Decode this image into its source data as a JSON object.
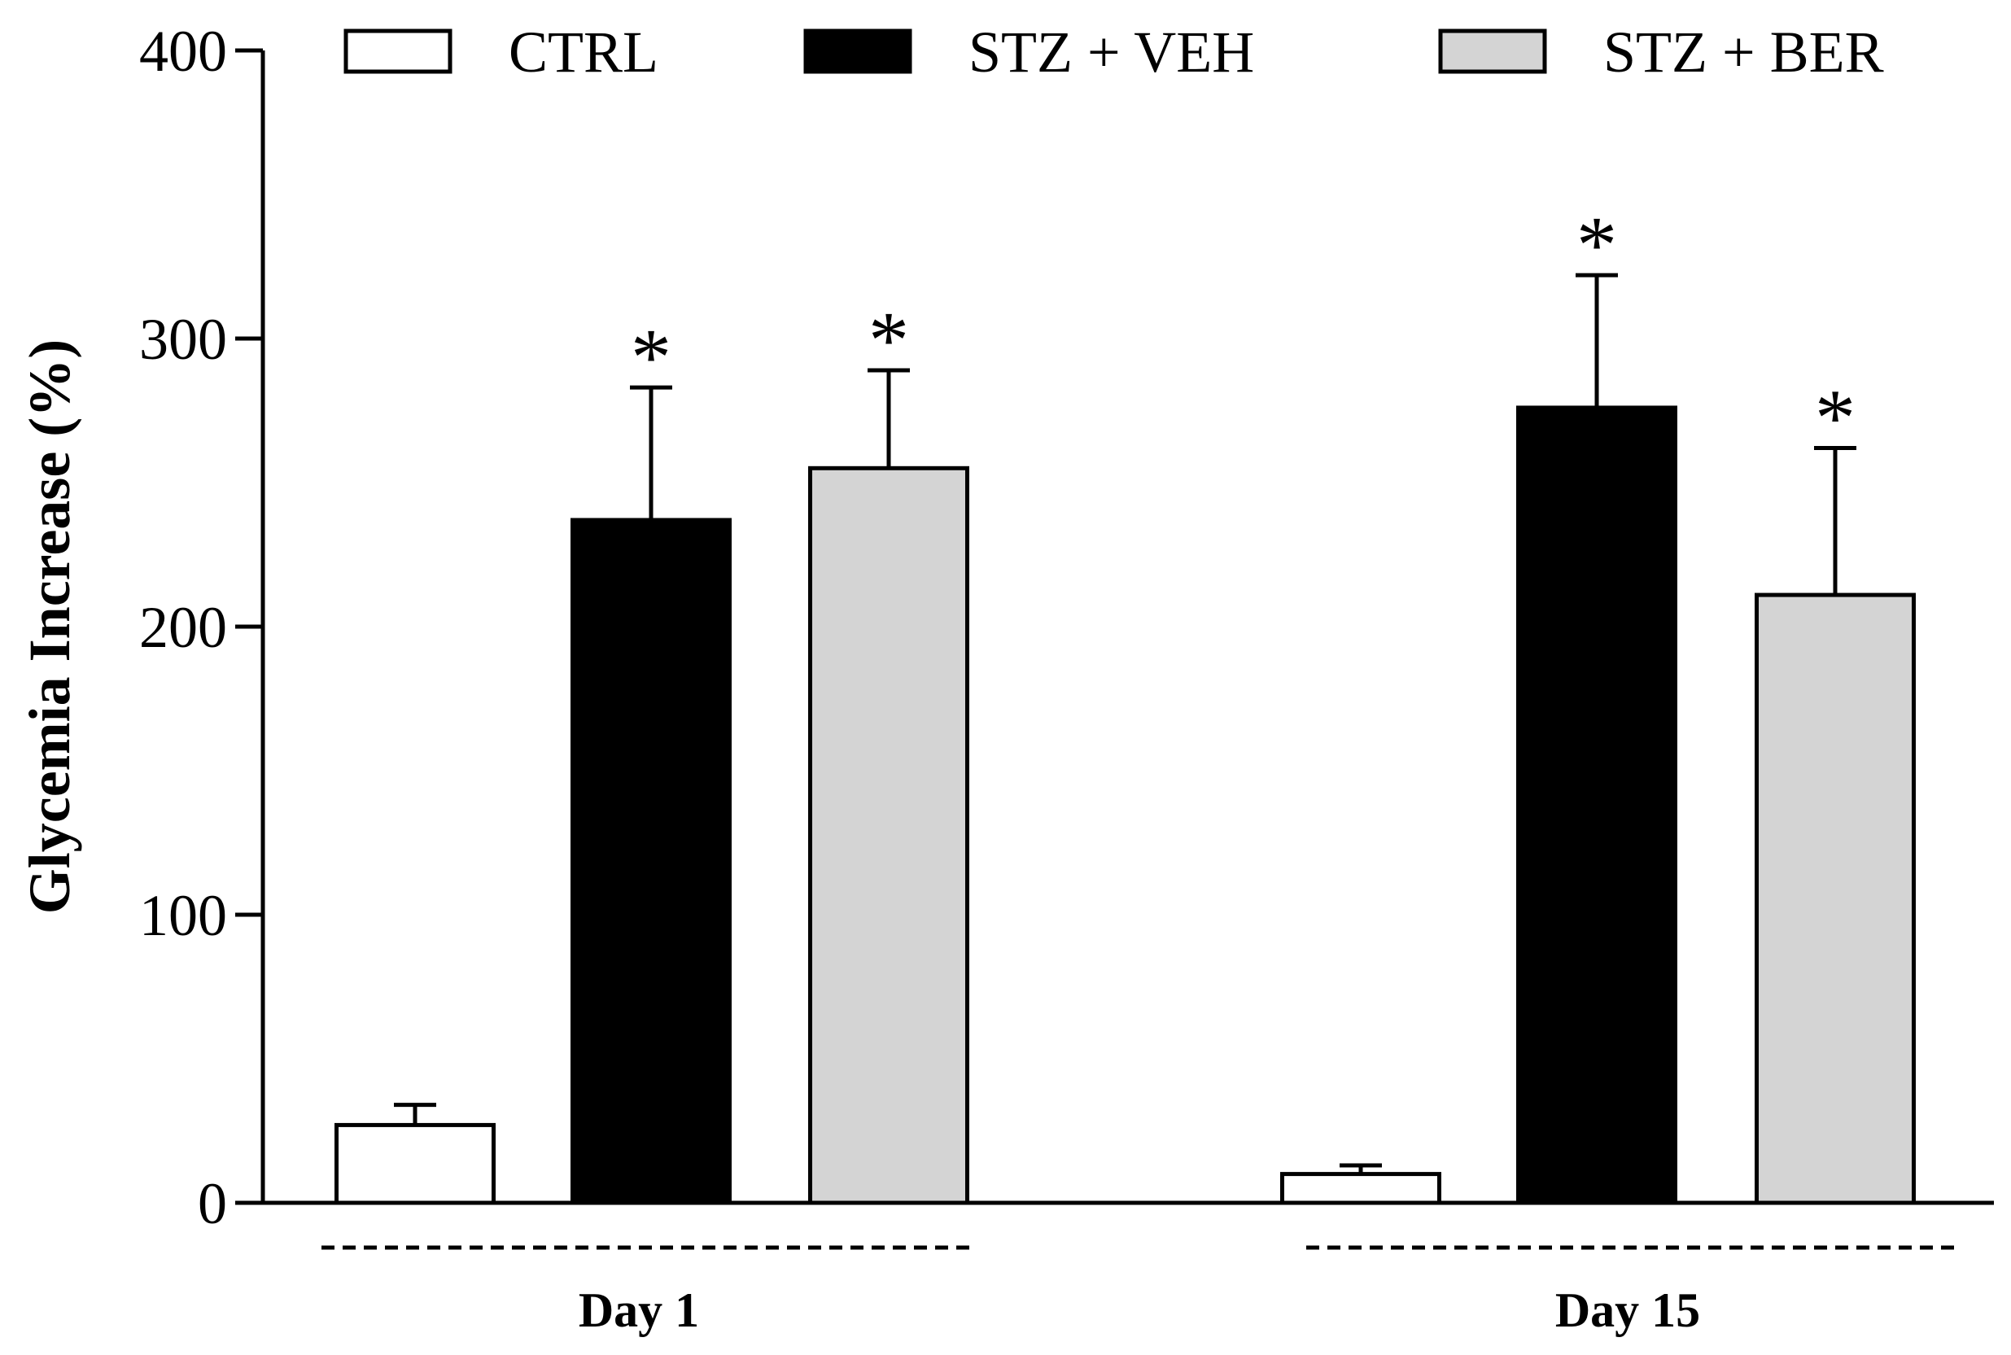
{
  "chart_data": {
    "type": "bar",
    "title": "",
    "xlabel": "",
    "ylabel": "Glycemia Increase (%)",
    "ylim": [
      0,
      400
    ],
    "yticks": [
      0,
      100,
      200,
      300,
      400
    ],
    "categories": [
      "Day 1",
      "Day 15"
    ],
    "series": [
      {
        "name": "CTRL",
        "color": "#ffffff",
        "values": [
          27,
          10
        ],
        "errors": [
          7,
          3
        ],
        "significance": [
          "",
          ""
        ]
      },
      {
        "name": "STZ + VEH",
        "color": "#000000",
        "values": [
          237,
          276
        ],
        "errors": [
          46,
          46
        ],
        "significance": [
          "*",
          "*"
        ]
      },
      {
        "name": "STZ + BER",
        "color": "#d4d4d4",
        "values": [
          255,
          211
        ],
        "errors": [
          34,
          51
        ],
        "significance": [
          "*",
          "*"
        ]
      }
    ],
    "legend_position": "top",
    "grid": false
  }
}
